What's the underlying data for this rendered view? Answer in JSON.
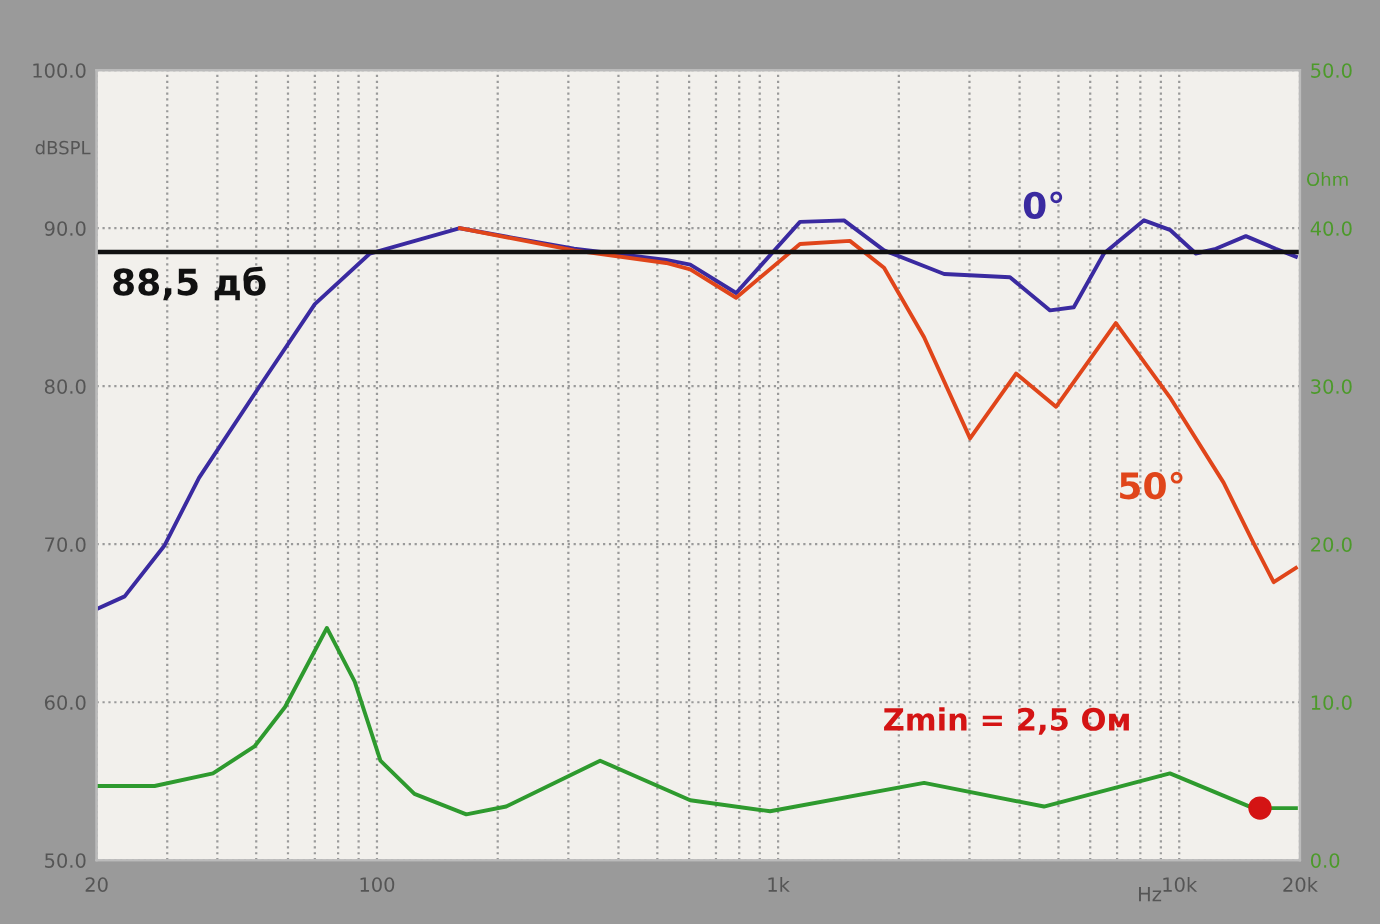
{
  "chart_data": {
    "type": "line",
    "ylabel": "dBSPL",
    "y2label": "Ohm",
    "xlabel": "Hz",
    "log": "x",
    "xlim": [
      20,
      20000
    ],
    "xticks": [
      {
        "value": 20,
        "label": "20"
      },
      {
        "value": 30,
        "label": null
      },
      {
        "value": 40,
        "label": null
      },
      {
        "value": 50,
        "label": null
      },
      {
        "value": 60,
        "label": null
      },
      {
        "value": 70,
        "label": null
      },
      {
        "value": 80,
        "label": null
      },
      {
        "value": 90,
        "label": null
      },
      {
        "value": 100,
        "label": "100"
      },
      {
        "value": 200,
        "label": null
      },
      {
        "value": 300,
        "label": null
      },
      {
        "value": 400,
        "label": null
      },
      {
        "value": 500,
        "label": null
      },
      {
        "value": 600,
        "label": null
      },
      {
        "value": 700,
        "label": null
      },
      {
        "value": 800,
        "label": null
      },
      {
        "value": 900,
        "label": null
      },
      {
        "value": 1000,
        "label": "1k"
      },
      {
        "value": 2000,
        "label": null
      },
      {
        "value": 3000,
        "label": null
      },
      {
        "value": 4000,
        "label": null
      },
      {
        "value": 5000,
        "label": null
      },
      {
        "value": 6000,
        "label": null
      },
      {
        "value": 7000,
        "label": null
      },
      {
        "value": 8000,
        "label": null
      },
      {
        "value": 9000,
        "label": null
      },
      {
        "value": 10000,
        "label": "10k"
      },
      {
        "value": 20000,
        "label": "20k"
      }
    ],
    "ylim": [
      50,
      100
    ],
    "yticks": [
      {
        "value": 50,
        "label": "50.0"
      },
      {
        "value": 60,
        "label": "60.0"
      },
      {
        "value": 70,
        "label": "70.0"
      },
      {
        "value": 80,
        "label": "80.0"
      },
      {
        "value": 90,
        "label": "90.0"
      },
      {
        "value": 100,
        "label": "100.0"
      }
    ],
    "y2lim": [
      0,
      50
    ],
    "y2ticks": [
      {
        "value": 0,
        "label": "0.0"
      },
      {
        "value": 10,
        "label": "10.0"
      },
      {
        "value": 20,
        "label": "20.0"
      },
      {
        "value": 30,
        "label": "30.0"
      },
      {
        "value": 40,
        "label": "40.0"
      },
      {
        "value": 50,
        "label": "50.0"
      }
    ],
    "grid": true,
    "marker": "none",
    "line_style": "solid",
    "ref_lines": [
      {
        "axis": "y",
        "value": 88.5,
        "label": "88,5 дб",
        "color": "#111111"
      }
    ],
    "series": [
      {
        "color": "#3a2aa0",
        "x": [
          20,
          23.5,
          29.5,
          36,
          51,
          70,
          96,
          161,
          310,
          526,
          604,
          786,
          1134,
          1460,
          1837,
          2594,
          3785,
          4765,
          5460,
          6490,
          8170,
          9480,
          11000,
          12340,
          14660,
          17400,
          19540
        ],
        "values": [
          65.9,
          66.7,
          69.9,
          74.2,
          80.0,
          85.2,
          88.4,
          90.0,
          88.7,
          88.0,
          87.7,
          85.9,
          90.4,
          90.5,
          88.6,
          87.1,
          86.9,
          84.8,
          85.0,
          88.4,
          90.5,
          89.9,
          88.4,
          88.7,
          89.5,
          88.7,
          88.2
        ]
      },
      {
        "color": "#e0451a",
        "x": [
          161,
          310,
          526,
          604,
          786,
          1134,
          1510,
          1837,
          2312,
          3010,
          3920,
          4930,
          6950,
          9480,
          12900,
          15300,
          17200,
          19540
        ],
        "values": [
          90.0,
          88.6,
          87.8,
          87.4,
          85.6,
          89.0,
          89.2,
          87.5,
          83.1,
          76.7,
          80.8,
          78.7,
          84.0,
          79.3,
          73.9,
          70.1,
          67.6,
          68.5
        ]
      },
      {
        "color": "#2e9a2e",
        "axis": "y2",
        "x": [
          20,
          27.9,
          39,
          49.5,
          59,
          75,
          88,
          102,
          124,
          167,
          210,
          360,
          604,
          955,
          2312,
          4600,
          9480,
          15300,
          19540
        ],
        "values": [
          4.7,
          4.7,
          5.5,
          7.2,
          9.7,
          14.7,
          11.3,
          6.3,
          4.2,
          2.9,
          3.4,
          6.3,
          3.8,
          3.1,
          4.9,
          3.4,
          5.5,
          3.3,
          3.3
        ]
      },
      {
        "type": "scatter",
        "marker": "circle",
        "color": "#d41414",
        "axis": "y2",
        "x": [
          15900
        ],
        "values": [
          3.3
        ]
      }
    ],
    "annotations": [
      "0°",
      "50°",
      "Zmin = 2,5 Ом"
    ]
  }
}
